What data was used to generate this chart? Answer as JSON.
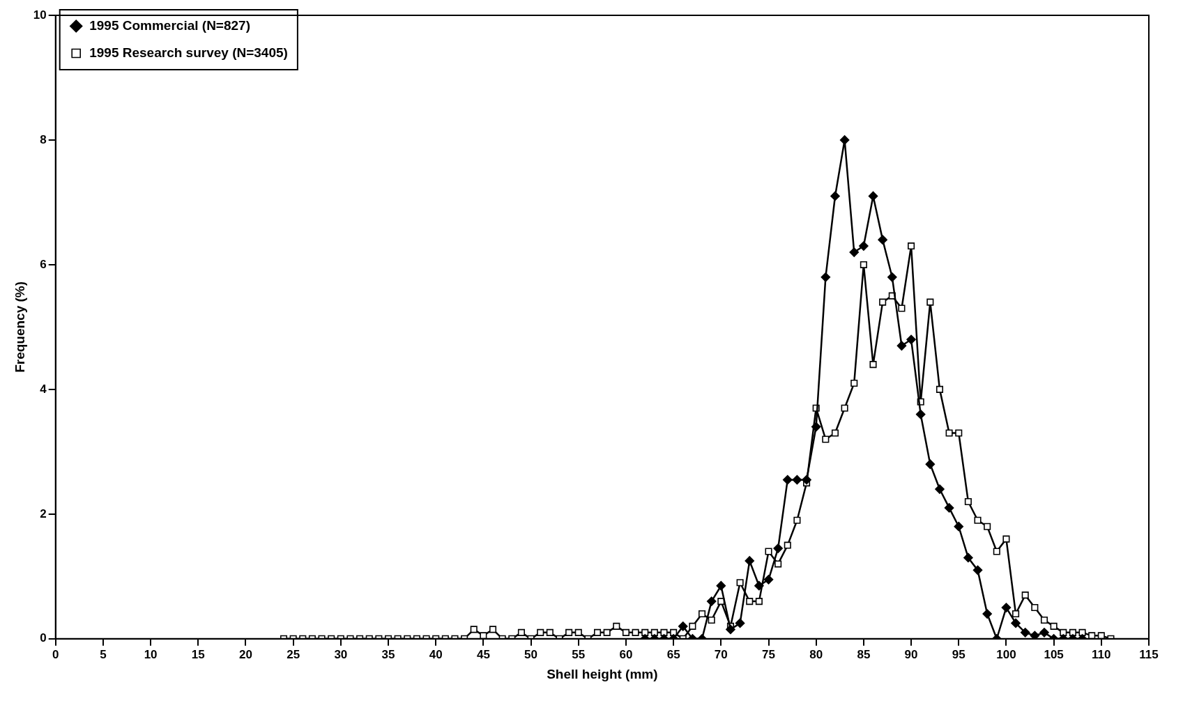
{
  "chart_data": {
    "type": "line",
    "xlabel": "Shell height (mm)",
    "ylabel": "Frequency (%)",
    "xlim": [
      0,
      115
    ],
    "xticks": [
      0,
      5,
      10,
      15,
      20,
      25,
      30,
      35,
      40,
      45,
      50,
      55,
      60,
      65,
      70,
      75,
      80,
      85,
      90,
      95,
      100,
      105,
      110,
      115
    ],
    "ylim": [
      0,
      10
    ],
    "yticks": [
      0,
      2,
      4,
      6,
      8,
      10
    ],
    "grid": false,
    "legend": "top left",
    "series": [
      {
        "name": "1995 Commercial (N=827)",
        "color": "#000000",
        "marker": "diamond",
        "x": [
          62,
          63,
          64,
          65,
          66,
          67,
          68,
          69,
          70,
          71,
          72,
          73,
          74,
          75,
          76,
          77,
          78,
          79,
          80,
          81,
          82,
          83,
          84,
          85,
          86,
          87,
          88,
          89,
          90,
          91,
          92,
          93,
          94,
          95,
          96,
          97,
          98,
          99,
          100,
          101,
          102,
          103,
          104,
          105,
          106,
          107,
          108
        ],
        "values": [
          0,
          0,
          0,
          0,
          0.2,
          0,
          0,
          0.6,
          0.85,
          0.15,
          0.25,
          1.25,
          0.85,
          0.95,
          1.45,
          2.55,
          2.55,
          2.55,
          3.4,
          5.8,
          7.1,
          8,
          6.2,
          6.3,
          7.1,
          6.4,
          5.8,
          4.7,
          4.8,
          3.6,
          2.8,
          2.4,
          2.1,
          1.8,
          1.3,
          1.1,
          0.4,
          0,
          0.5,
          0.25,
          0.1,
          0.05,
          0.1,
          0,
          0,
          0,
          0
        ]
      },
      {
        "name": "1995 Research survey (N=3405)",
        "color": "#000000",
        "marker": "square",
        "x": [
          24,
          25,
          26,
          27,
          28,
          29,
          30,
          31,
          32,
          33,
          34,
          35,
          36,
          37,
          38,
          39,
          40,
          41,
          42,
          43,
          44,
          45,
          46,
          47,
          48,
          49,
          50,
          51,
          52,
          53,
          54,
          55,
          56,
          57,
          58,
          59,
          60,
          61,
          62,
          63,
          64,
          65,
          66,
          67,
          68,
          69,
          70,
          71,
          72,
          73,
          74,
          75,
          76,
          77,
          78,
          79,
          80,
          81,
          82,
          83,
          84,
          85,
          86,
          87,
          88,
          89,
          90,
          91,
          92,
          93,
          94,
          95,
          96,
          97,
          98,
          99,
          100,
          101,
          102,
          103,
          104,
          105,
          106,
          107,
          108,
          109,
          110,
          111
        ],
        "values": [
          0,
          0,
          0,
          0,
          0,
          0,
          0,
          0,
          0,
          0,
          0,
          0,
          0,
          0,
          0,
          0,
          0,
          0,
          0,
          0,
          0.15,
          0.05,
          0.15,
          0,
          0,
          0.1,
          0,
          0.1,
          0.1,
          0,
          0.1,
          0.1,
          0,
          0.1,
          0.1,
          0.2,
          0.1,
          0.1,
          0.1,
          0.1,
          0.1,
          0.1,
          0,
          0.2,
          0.4,
          0.3,
          0.6,
          0.2,
          0.9,
          0.6,
          0.6,
          1.4,
          1.2,
          1.5,
          1.9,
          2.5,
          3.7,
          3.2,
          3.3,
          3.7,
          4.1,
          6,
          4.4,
          5.4,
          5.5,
          5.3,
          6.3,
          3.8,
          5.4,
          4,
          3.3,
          3.3,
          2.2,
          1.9,
          1.8,
          1.4,
          1.6,
          0.4,
          0.7,
          0.5,
          0.3,
          0.2,
          0.1,
          0.1,
          0.1,
          0.05,
          0.05,
          0
        ]
      }
    ]
  }
}
